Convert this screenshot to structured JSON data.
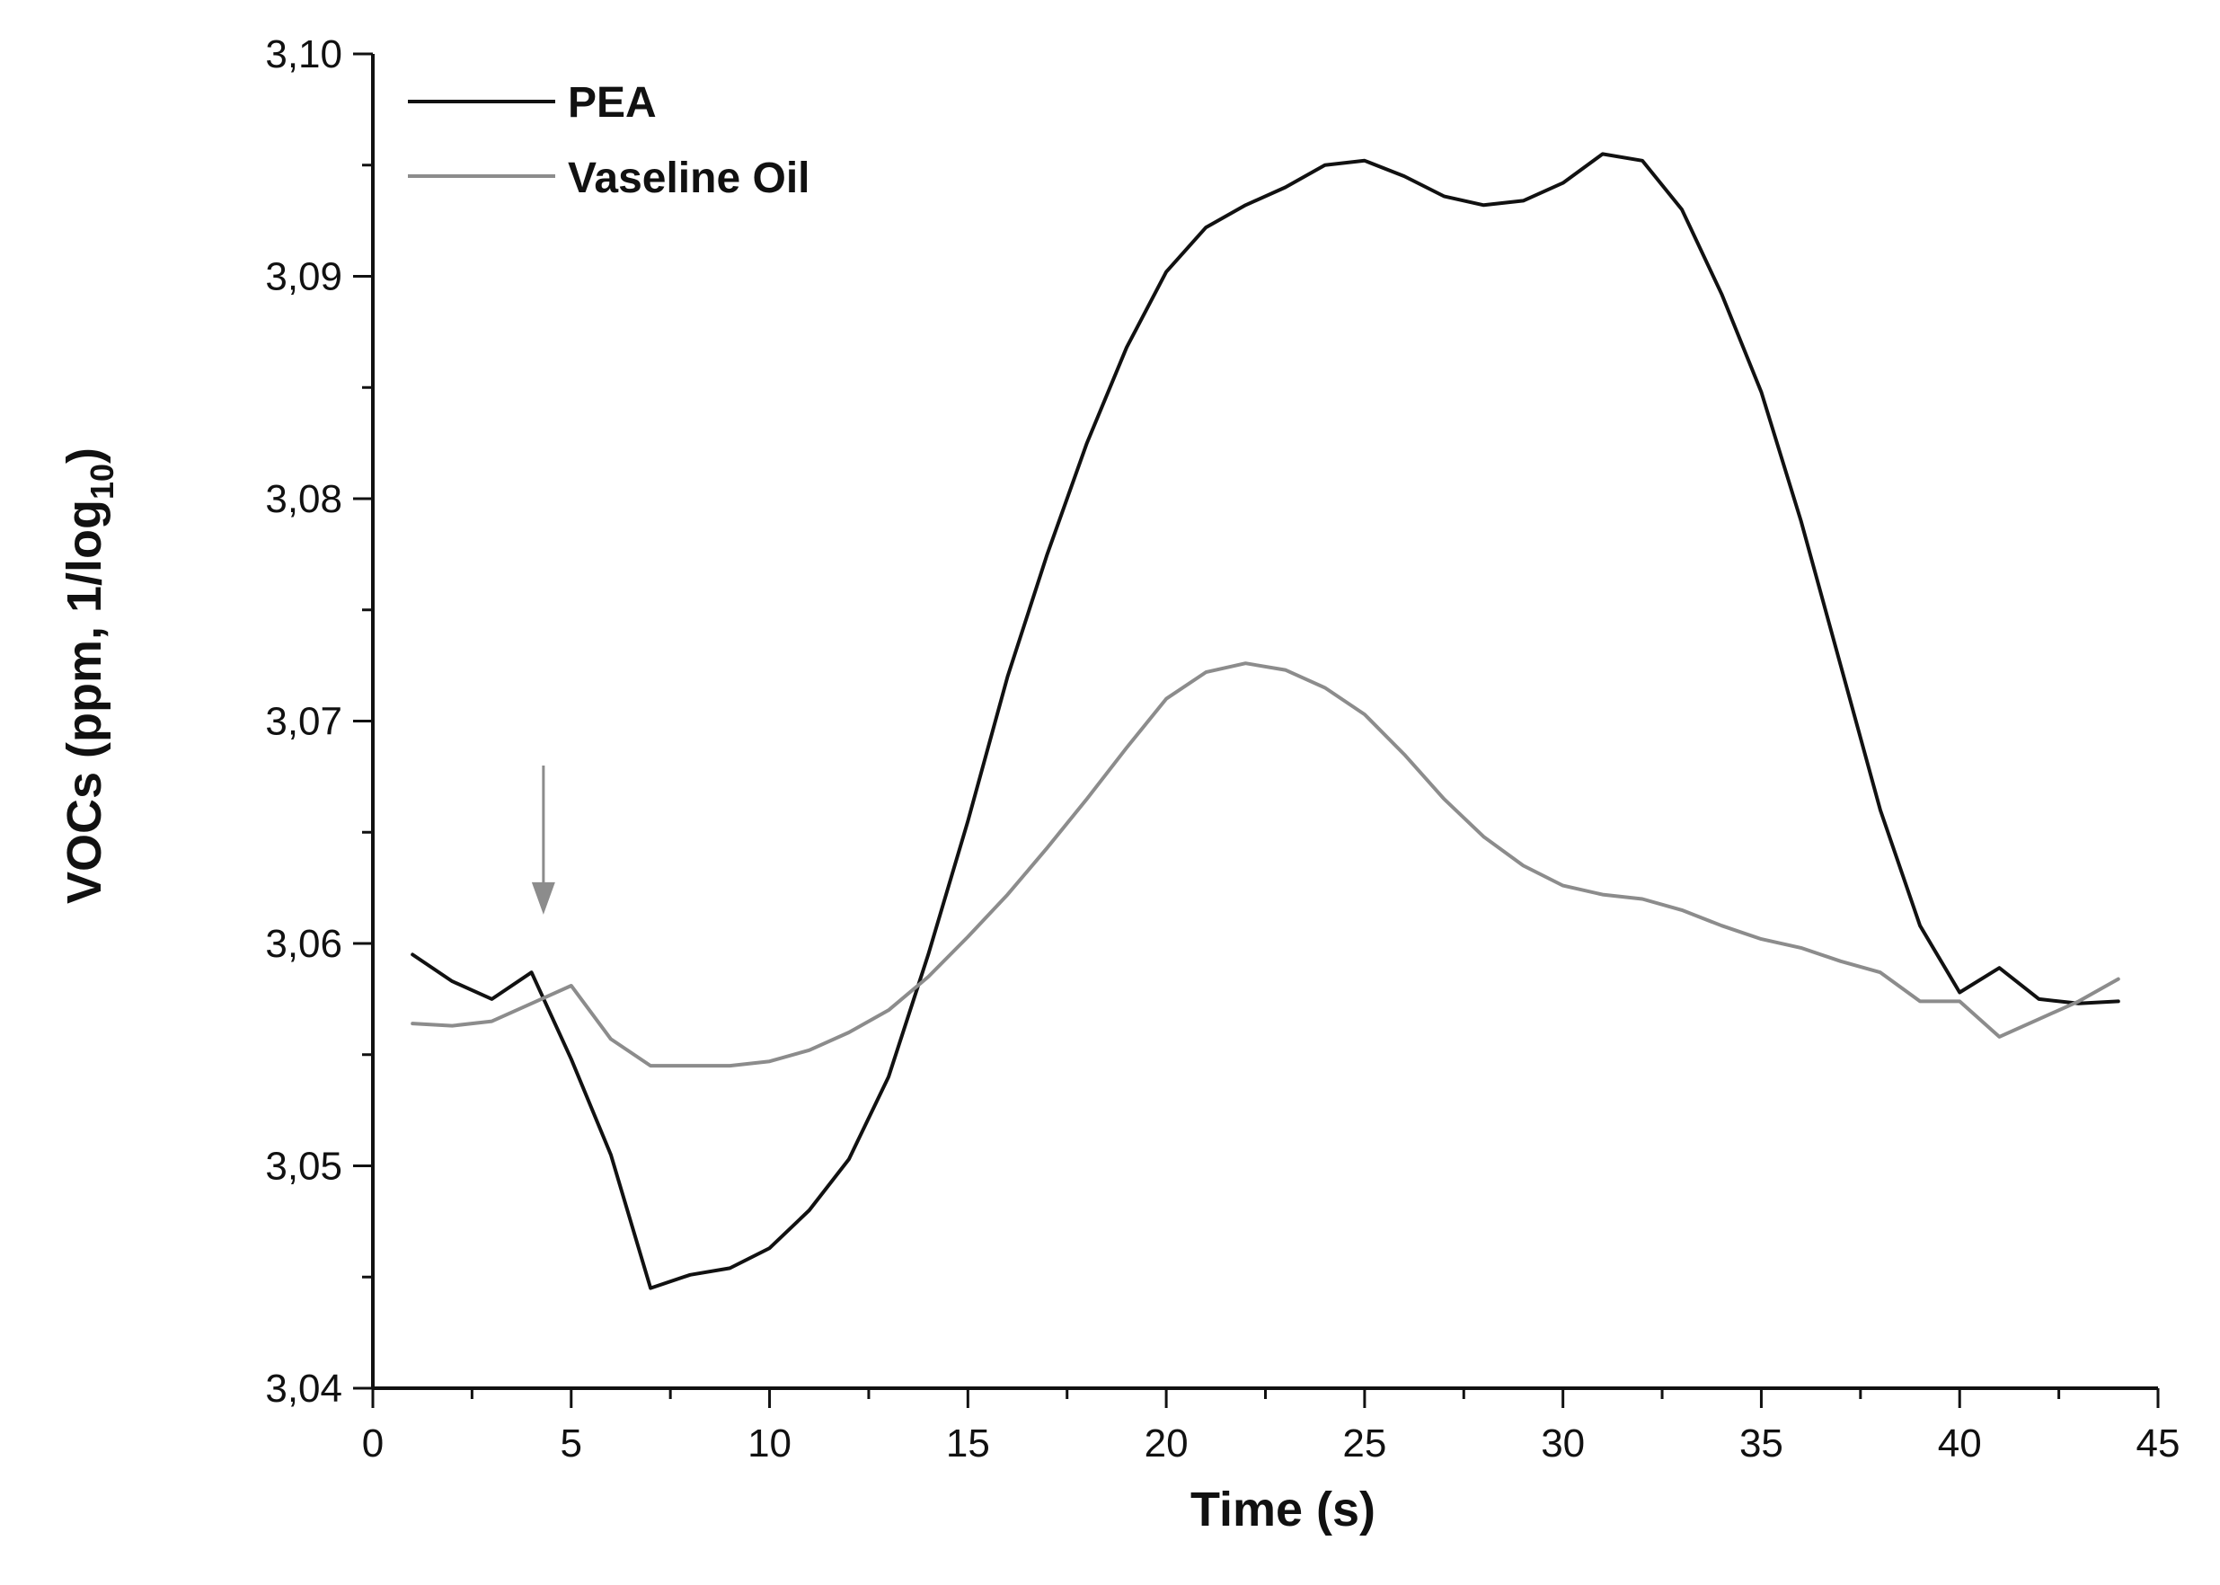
{
  "chart_data": {
    "type": "line",
    "title": "",
    "xlabel": "Time (s)",
    "ylabel_main": "VOCs (ppm, 1/log",
    "ylabel_sub": "10",
    "ylabel_close": ")",
    "xlim": [
      0,
      45
    ],
    "ylim": [
      3.04,
      3.1
    ],
    "xticks": [
      0,
      5,
      10,
      15,
      20,
      25,
      30,
      35,
      40,
      45
    ],
    "xtick_labels": [
      "0",
      "5",
      "10",
      "15",
      "20",
      "25",
      "30",
      "35",
      "40",
      "45"
    ],
    "yticks": [
      3.04,
      3.05,
      3.06,
      3.07,
      3.08,
      3.09,
      3.1
    ],
    "ytick_labels": [
      "3,04",
      "3,05",
      "3,06",
      "3,07",
      "3,08",
      "3,09",
      "3,10"
    ],
    "grid": false,
    "legend_position": "top-left",
    "series": [
      {
        "name": "PEA",
        "color": "#111111",
        "x": [
          1,
          2,
          3,
          4,
          5,
          6,
          7,
          8,
          9,
          10,
          11,
          12,
          13,
          14,
          15,
          16,
          17,
          18,
          19,
          20,
          21,
          22,
          23,
          24,
          25,
          26,
          27,
          28,
          29,
          30,
          31,
          32,
          33,
          34,
          35,
          36,
          37,
          38,
          39,
          40,
          41,
          42,
          43,
          44
        ],
        "values": [
          3.0595,
          3.0583,
          3.0575,
          3.0587,
          3.0548,
          3.0505,
          3.0445,
          3.0451,
          3.0454,
          3.0463,
          3.048,
          3.0503,
          3.054,
          3.0595,
          3.0655,
          3.072,
          3.0775,
          3.0825,
          3.0868,
          3.0902,
          3.0922,
          3.0932,
          3.094,
          3.095,
          3.0952,
          3.0945,
          3.0936,
          3.0932,
          3.0934,
          3.0942,
          3.0955,
          3.0952,
          3.093,
          3.0892,
          3.0848,
          3.079,
          3.0725,
          3.066,
          3.0608,
          3.0578,
          3.0589,
          3.0575,
          3.0573,
          3.0574
        ]
      },
      {
        "name": "Vaseline Oil",
        "color": "#8c8c8c",
        "x": [
          1,
          2,
          3,
          4,
          5,
          6,
          7,
          8,
          9,
          10,
          11,
          12,
          13,
          14,
          15,
          16,
          17,
          18,
          19,
          20,
          21,
          22,
          23,
          24,
          25,
          26,
          27,
          28,
          29,
          30,
          31,
          32,
          33,
          34,
          35,
          36,
          37,
          38,
          39,
          40,
          41,
          42,
          43,
          44
        ],
        "values": [
          3.0564,
          3.0563,
          3.0565,
          3.0573,
          3.0581,
          3.0557,
          3.0545,
          3.0545,
          3.0545,
          3.0547,
          3.0552,
          3.056,
          3.057,
          3.0585,
          3.0603,
          3.0622,
          3.0643,
          3.0665,
          3.0688,
          3.071,
          3.0722,
          3.0726,
          3.0723,
          3.0715,
          3.0703,
          3.0685,
          3.0665,
          3.0648,
          3.0635,
          3.0626,
          3.0622,
          3.062,
          3.0615,
          3.0608,
          3.0602,
          3.0598,
          3.0592,
          3.0587,
          3.0574,
          3.0574,
          3.0558,
          3.0566,
          3.0574,
          3.0584
        ]
      }
    ],
    "annotations": [
      {
        "type": "arrow",
        "name": "injection-arrow",
        "x": 4.3,
        "y_top": 3.068,
        "y_tip": 3.0613,
        "color": "#8c8c8c"
      }
    ]
  }
}
